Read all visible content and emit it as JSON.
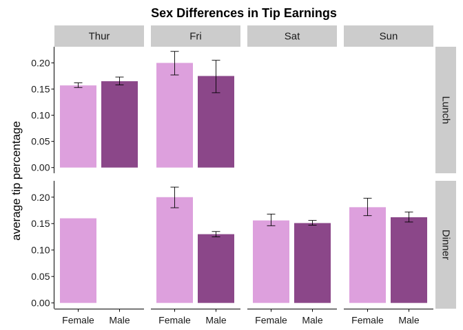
{
  "chart_data": {
    "type": "bar",
    "title": "Sex Differences in Tip Earnings",
    "xlabel": "",
    "ylabel": "average tip percentage",
    "columns": [
      "Thur",
      "Fri",
      "Sat",
      "Sun"
    ],
    "rows": [
      "Lunch",
      "Dinner"
    ],
    "categories": [
      "Female",
      "Male"
    ],
    "ylim": [
      0,
      0.22
    ],
    "yticks": [
      0.0,
      0.05,
      0.1,
      0.15,
      0.2
    ],
    "ytick_labels": [
      "0.00",
      "0.05",
      "0.10",
      "0.15",
      "0.20"
    ],
    "colors": {
      "Female": "#dda0dd",
      "Male": "#8b4789",
      "strip": "#cccccc",
      "axis": "#000000"
    },
    "panels": [
      {
        "row": "Lunch",
        "column": "Thur",
        "bars": [
          {
            "sex": "Female",
            "value": 0.157,
            "err_low": 0.153,
            "err_high": 0.162
          },
          {
            "sex": "Male",
            "value": 0.165,
            "err_low": 0.158,
            "err_high": 0.173
          }
        ]
      },
      {
        "row": "Lunch",
        "column": "Fri",
        "bars": [
          {
            "sex": "Female",
            "value": 0.2,
            "err_low": 0.177,
            "err_high": 0.222
          },
          {
            "sex": "Male",
            "value": 0.175,
            "err_low": 0.143,
            "err_high": 0.205
          }
        ]
      },
      {
        "row": "Lunch",
        "column": "Sat",
        "bars": []
      },
      {
        "row": "Lunch",
        "column": "Sun",
        "bars": []
      },
      {
        "row": "Dinner",
        "column": "Thur",
        "bars": [
          {
            "sex": "Female",
            "value": 0.16
          }
        ]
      },
      {
        "row": "Dinner",
        "column": "Fri",
        "bars": [
          {
            "sex": "Female",
            "value": 0.2,
            "err_low": 0.18,
            "err_high": 0.219
          },
          {
            "sex": "Male",
            "value": 0.13,
            "err_low": 0.125,
            "err_high": 0.135
          }
        ]
      },
      {
        "row": "Dinner",
        "column": "Sat",
        "bars": [
          {
            "sex": "Female",
            "value": 0.156,
            "err_low": 0.146,
            "err_high": 0.168
          },
          {
            "sex": "Male",
            "value": 0.151,
            "err_low": 0.147,
            "err_high": 0.156
          }
        ]
      },
      {
        "row": "Dinner",
        "column": "Sun",
        "bars": [
          {
            "sex": "Female",
            "value": 0.181,
            "err_low": 0.165,
            "err_high": 0.198
          },
          {
            "sex": "Male",
            "value": 0.162,
            "err_low": 0.153,
            "err_high": 0.172
          }
        ]
      }
    ]
  }
}
